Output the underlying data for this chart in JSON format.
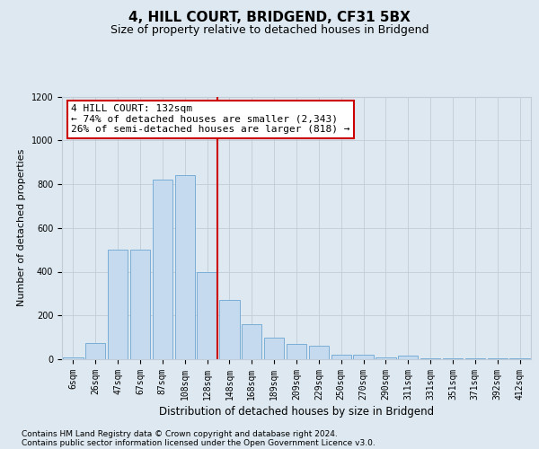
{
  "title": "4, HILL COURT, BRIDGEND, CF31 5BX",
  "subtitle": "Size of property relative to detached houses in Bridgend",
  "xlabel": "Distribution of detached houses by size in Bridgend",
  "ylabel": "Number of detached properties",
  "annotation_line1": "4 HILL COURT: 132sqm",
  "annotation_line2": "← 74% of detached houses are smaller (2,343)",
  "annotation_line3": "26% of semi-detached houses are larger (818) →",
  "footer_line1": "Contains HM Land Registry data © Crown copyright and database right 2024.",
  "footer_line2": "Contains public sector information licensed under the Open Government Licence v3.0.",
  "bar_categories": [
    "6sqm",
    "26sqm",
    "47sqm",
    "67sqm",
    "87sqm",
    "108sqm",
    "128sqm",
    "148sqm",
    "168sqm",
    "189sqm",
    "209sqm",
    "229sqm",
    "250sqm",
    "270sqm",
    "290sqm",
    "311sqm",
    "331sqm",
    "351sqm",
    "371sqm",
    "392sqm",
    "412sqm"
  ],
  "bar_values": [
    10,
    75,
    500,
    500,
    820,
    840,
    400,
    270,
    160,
    100,
    70,
    60,
    20,
    20,
    8,
    15,
    5,
    5,
    5,
    5,
    5
  ],
  "bar_color": "#c5d9ef",
  "bar_edgecolor": "#7aaed6",
  "vline_index_after": 6,
  "vline_color": "#cc0000",
  "ylim_max": 1200,
  "yticks": [
    0,
    200,
    400,
    600,
    800,
    1000,
    1200
  ],
  "fig_bg_color": "#dde8f0",
  "plot_bg_color": "#dde8f0",
  "grid_color": "#c0cdd8",
  "title_fontsize": 11,
  "subtitle_fontsize": 9,
  "annot_fontsize": 8,
  "tick_fontsize": 7,
  "ylabel_fontsize": 8,
  "xlabel_fontsize": 8.5,
  "footer_fontsize": 6.5
}
